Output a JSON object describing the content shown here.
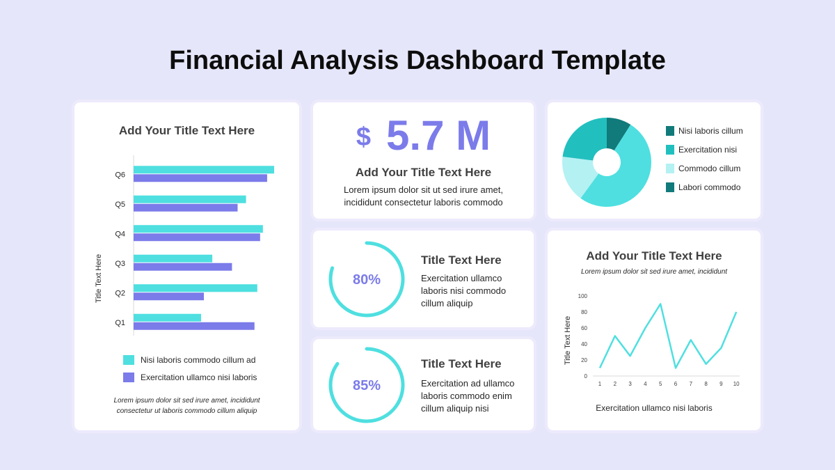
{
  "page": {
    "title": "Financial Analysis Dashboard Template"
  },
  "bar_card": {
    "title": "Add Your Title Text Here",
    "ylabel": "Title Text Here",
    "legend": [
      {
        "label": "Nisi laboris commodo cillum ad",
        "color": "#4fdfe0"
      },
      {
        "label": "Exercitation ullamco nisi laboris",
        "color": "#7b7bea"
      }
    ],
    "note_line1": "Lorem ipsum dolor sit sed irure amet, incididunt",
    "note_line2": "consectetur ut laboris commodo cillum aliquip"
  },
  "kpi_card": {
    "currency": "$",
    "value": "5.7 M",
    "title": "Add Your Title Text Here",
    "desc_line1": "Lorem ipsum dolor sit ut sed irure amet,",
    "desc_line2": "incididunt consectetur laboris commodo"
  },
  "pie_card": {
    "legend": [
      {
        "label": "Nisi laboris cillum",
        "color": "#117a7a"
      },
      {
        "label": "Exercitation nisi",
        "color": "#22bfbf"
      },
      {
        "label": "Commodo cillum",
        "color": "#b4f1f3"
      },
      {
        "label": "Labori commodo",
        "color": "#117a7a"
      }
    ]
  },
  "gauge_cards": [
    {
      "value": 80,
      "label": "80%",
      "title": "Title Text Here",
      "desc": [
        "Exercitation ullamco",
        "laboris nisi commodo",
        "cillum aliquip"
      ]
    },
    {
      "value": 85,
      "label": "85%",
      "title": "Title Text Here",
      "desc": [
        "Exercitation ad ullamco",
        "laboris commodo enim",
        "cillum aliquip nisi"
      ]
    }
  ],
  "line_card": {
    "title": "Add Your Title Text Here",
    "subtitle": "Lorem ipsum dolor sit sed irure amet, incididunt",
    "ylabel": "Title Text Here",
    "xlabel": "Exercitation ullamco nisi laboris"
  },
  "colors": {
    "teal": "#4fdfe0",
    "purple": "#7b7bea",
    "background": "#e6e6fb"
  },
  "chart_data": [
    {
      "type": "bar",
      "orientation": "horizontal",
      "title": "Add Your Title Text Here",
      "ylabel": "Title Text Here",
      "categories": [
        "Q1",
        "Q2",
        "Q3",
        "Q4",
        "Q5",
        "Q6"
      ],
      "series": [
        {
          "name": "Nisi laboris commodo cillum ad",
          "values": [
            48,
            88,
            56,
            92,
            80,
            100
          ]
        },
        {
          "name": "Exercitation ullamco nisi laboris",
          "values": [
            86,
            50,
            70,
            90,
            74,
            95
          ]
        }
      ],
      "xlim": [
        0,
        100
      ],
      "legend": "bottom"
    },
    {
      "type": "pie",
      "donut": true,
      "slices": [
        {
          "label": "Nisi laboris cillum",
          "value": 9
        },
        {
          "label": "Exercitation nisi",
          "value": 51
        },
        {
          "label": "Commodo cillum",
          "value": 17
        },
        {
          "label": "Labori commodo",
          "value": 23
        }
      ],
      "legend": "right"
    },
    {
      "type": "line",
      "title": "Add Your Title Text Here",
      "subtitle": "Lorem ipsum dolor sit sed irure amet, incididunt",
      "xlabel": "Exercitation ullamco nisi laboris",
      "ylabel": "Title Text Here",
      "x": [
        1,
        2,
        3,
        4,
        5,
        6,
        7,
        8,
        9,
        10
      ],
      "y": [
        10,
        50,
        25,
        60,
        90,
        10,
        45,
        15,
        35,
        80
      ],
      "ylim": [
        0,
        100
      ],
      "yticks": [
        0,
        20,
        40,
        60,
        80,
        100
      ],
      "grid": false
    }
  ]
}
